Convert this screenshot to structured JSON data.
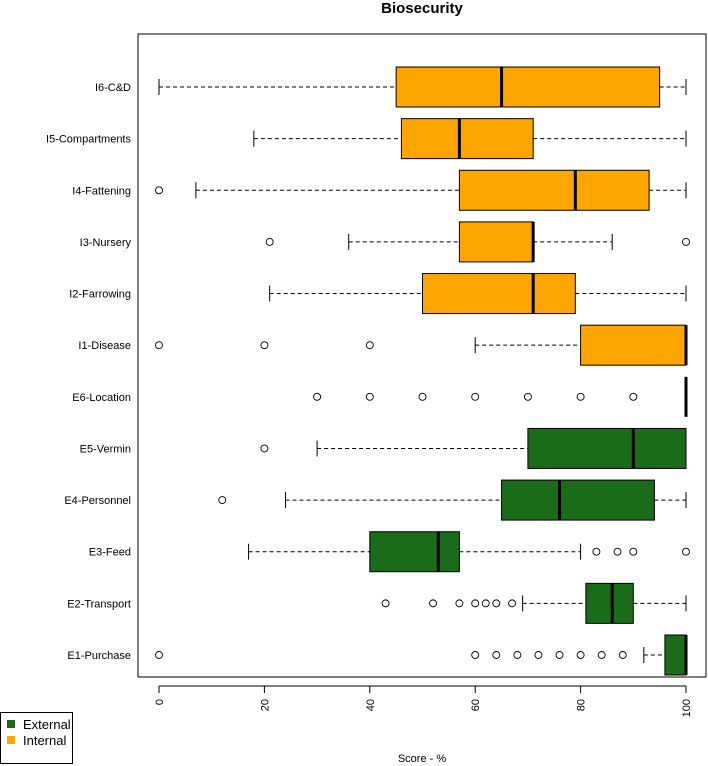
{
  "chart_data": {
    "type": "boxplot",
    "orientation": "horizontal",
    "title": "Biosecurity",
    "xlabel": "Score - %",
    "ylabel": "",
    "xlim": [
      0,
      100
    ],
    "xticks": [
      0,
      20,
      40,
      60,
      80,
      100
    ],
    "grid": false,
    "legend": {
      "position": "bottom-left",
      "entries": [
        {
          "label": "External",
          "color": "#1a6b1a"
        },
        {
          "label": "Internal",
          "color": "#ffa500"
        }
      ]
    },
    "categories": [
      {
        "label": "E1-Purchase",
        "group": "External",
        "whisker_low": 92,
        "q1": 96,
        "median": 100,
        "q3": 100,
        "whisker_high": 100,
        "outliers": [
          0,
          60,
          64,
          68,
          72,
          76,
          80,
          84,
          88
        ]
      },
      {
        "label": "E2-Transport",
        "group": "External",
        "whisker_low": 69,
        "q1": 81,
        "median": 86,
        "q3": 90,
        "whisker_high": 100,
        "outliers": [
          43,
          52,
          57,
          60,
          62,
          64,
          67
        ]
      },
      {
        "label": "E3-Feed",
        "group": "External",
        "whisker_low": 17,
        "q1": 40,
        "median": 53,
        "q3": 57,
        "whisker_high": 80,
        "outliers": [
          83,
          87,
          90,
          100
        ]
      },
      {
        "label": "E4-Personnel",
        "group": "External",
        "whisker_low": 24,
        "q1": 65,
        "median": 76,
        "q3": 94,
        "whisker_high": 100,
        "outliers": [
          12
        ]
      },
      {
        "label": "E5-Vermin",
        "group": "External",
        "whisker_low": 30,
        "q1": 70,
        "median": 90,
        "q3": 100,
        "whisker_high": 100,
        "outliers": [
          20
        ]
      },
      {
        "label": "E6-Location",
        "group": "External",
        "whisker_low": 100,
        "q1": 100,
        "median": 100,
        "q3": 100,
        "whisker_high": 100,
        "outliers": [
          30,
          40,
          50,
          60,
          70,
          80,
          90
        ]
      },
      {
        "label": "I1-Disease",
        "group": "Internal",
        "whisker_low": 60,
        "q1": 80,
        "median": 100,
        "q3": 100,
        "whisker_high": 100,
        "outliers": [
          0,
          20,
          40
        ]
      },
      {
        "label": "I2-Farrowing",
        "group": "Internal",
        "whisker_low": 21,
        "q1": 50,
        "median": 71,
        "q3": 79,
        "whisker_high": 100,
        "outliers": []
      },
      {
        "label": "I3-Nursery",
        "group": "Internal",
        "whisker_low": 36,
        "q1": 57,
        "median": 71,
        "q3": 71,
        "whisker_high": 86,
        "outliers": [
          21,
          100
        ]
      },
      {
        "label": "I4-Fattening",
        "group": "Internal",
        "whisker_low": 7,
        "q1": 57,
        "median": 79,
        "q3": 93,
        "whisker_high": 100,
        "outliers": [
          0
        ]
      },
      {
        "label": "I5-Compartments",
        "group": "Internal",
        "whisker_low": 18,
        "q1": 46,
        "median": 57,
        "q3": 71,
        "whisker_high": 100,
        "outliers": []
      },
      {
        "label": "I6-C&D",
        "group": "Internal",
        "whisker_low": 0,
        "q1": 45,
        "median": 65,
        "q3": 95,
        "whisker_high": 100,
        "outliers": []
      }
    ]
  }
}
